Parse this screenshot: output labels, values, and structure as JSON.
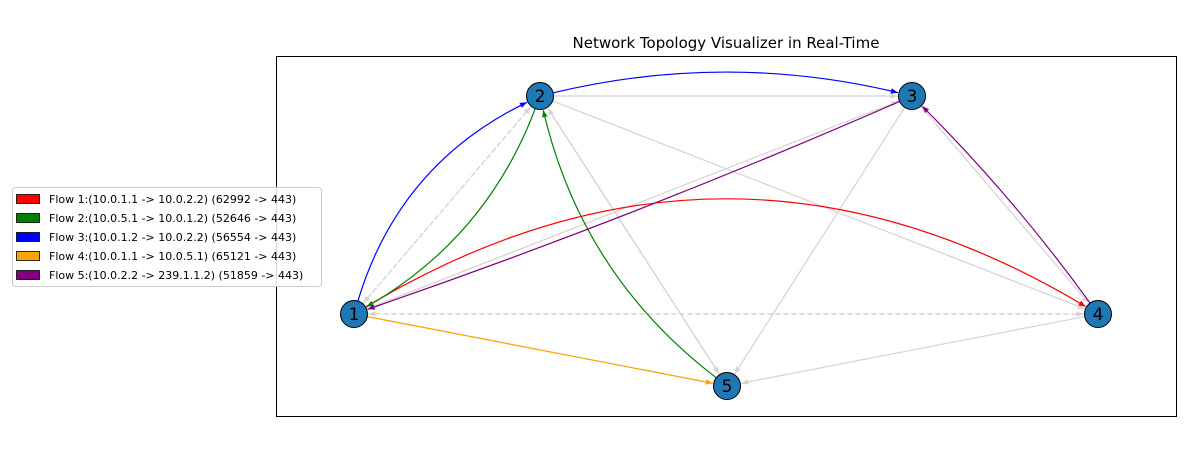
{
  "title": "Network Topology Visualizer in Real-Time",
  "colors": {
    "node_fill": "#1f77b4",
    "node_stroke": "#000000",
    "link": "#d3d3d3",
    "frame": "#000000"
  },
  "nodes": [
    {
      "id": "1",
      "label": "1"
    },
    {
      "id": "2",
      "label": "2"
    },
    {
      "id": "3",
      "label": "3"
    },
    {
      "id": "4",
      "label": "4"
    },
    {
      "id": "5",
      "label": "5"
    }
  ],
  "links": [
    {
      "from": "1",
      "to": "2",
      "style": "dashed"
    },
    {
      "from": "2",
      "to": "1",
      "style": "dashed"
    },
    {
      "from": "1",
      "to": "3",
      "style": "solid"
    },
    {
      "from": "1",
      "to": "4",
      "style": "dashed"
    },
    {
      "from": "4",
      "to": "1",
      "style": "dashed"
    },
    {
      "from": "1",
      "to": "5",
      "style": "solid"
    },
    {
      "from": "2",
      "to": "3",
      "style": "solid"
    },
    {
      "from": "2",
      "to": "4",
      "style": "solid"
    },
    {
      "from": "2",
      "to": "5",
      "style": "solid"
    },
    {
      "from": "5",
      "to": "2",
      "style": "solid"
    },
    {
      "from": "3",
      "to": "4",
      "style": "solid"
    },
    {
      "from": "3",
      "to": "5",
      "style": "solid"
    },
    {
      "from": "4",
      "to": "5",
      "style": "solid"
    }
  ],
  "flows": [
    {
      "label": "Flow 1:(10.0.1.1 -> 10.0.2.2) (62992 -> 443)",
      "color": "#ff0000",
      "path": [
        "1",
        "4"
      ]
    },
    {
      "label": "Flow 2:(10.0.5.1 -> 10.0.1.2) (52646 -> 443)",
      "color": "#008000",
      "path": [
        "5",
        "2",
        "1"
      ]
    },
    {
      "label": "Flow 3:(10.0.1.2 -> 10.0.2.2) (56554 -> 443)",
      "color": "#0000ff",
      "path": [
        "1",
        "2",
        "3"
      ]
    },
    {
      "label": "Flow 4:(10.0.1.1 -> 10.0.5.1) (65121 -> 443)",
      "color": "#ffa500",
      "path": [
        "1",
        "5"
      ]
    },
    {
      "label": "Flow 5:(10.0.2.2 -> 239.1.1.2) (51859 -> 443)",
      "color": "#800080",
      "path": [
        "4",
        "3",
        "1"
      ]
    }
  ]
}
